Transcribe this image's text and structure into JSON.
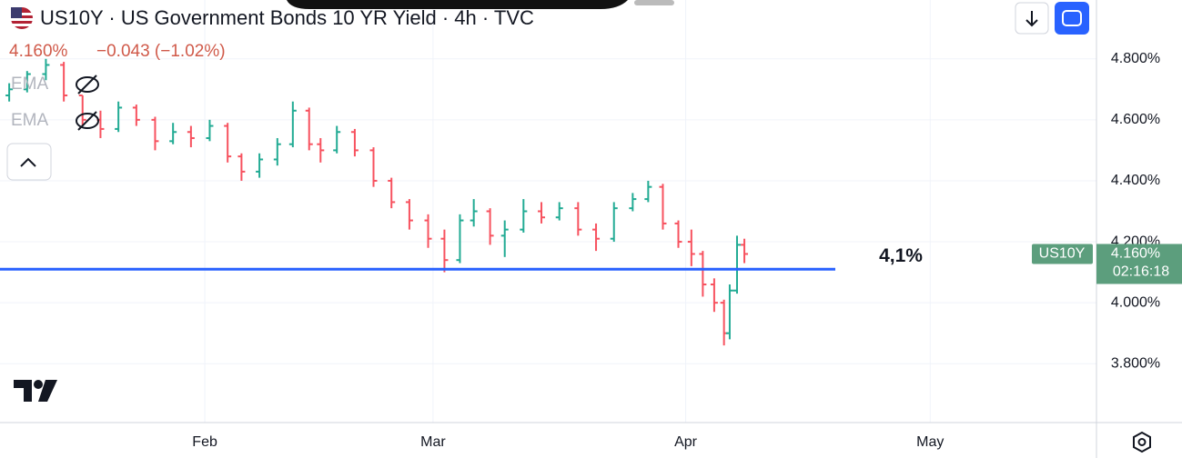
{
  "chart_data": {
    "type": "ohlc",
    "title": "US10Y · US Government Bonds 10 YR Yield · 4h · TVC",
    "price_label": "4.160%",
    "change_label": "−0.043 (−1.02%)",
    "indicators": [
      "EMA",
      "EMA"
    ],
    "symbol": "US10Y",
    "countdown": "02:16:18",
    "last_value": {
      "value": 4.16,
      "label": "4.160%"
    },
    "annotation": {
      "value": 4.11,
      "label": "4,1%",
      "color": "#2962ff"
    },
    "up_color": "#22ab94",
    "down_color": "#f7525f",
    "grid": true,
    "x": [
      8.0,
      10.2,
      12.5,
      14.7,
      17.0,
      19.2,
      21.4,
      23.6,
      25.9,
      28.1,
      30.3,
      32.6,
      34.8,
      36.5,
      38.7,
      40.9,
      42.8,
      44.8,
      46.2,
      48.2,
      50.4,
      52.7,
      54.9,
      57.1,
      59.4,
      61.4,
      63.3,
      65.0,
      67.0,
      68.8,
      71.1,
      73.3,
      75.5,
      77.8,
      80.0,
      82.2,
      84.5,
      86.4,
      88.2,
      90.1,
      91.7,
      93.1,
      94.5,
      95.7,
      96.4,
      97.3,
      98.2
    ],
    "open": [
      4.68,
      4.7,
      4.75,
      4.78,
      4.68,
      4.6,
      4.57,
      4.64,
      4.6,
      4.53,
      4.56,
      4.54,
      4.58,
      4.48,
      4.43,
      4.47,
      4.52,
      4.63,
      4.52,
      4.5,
      4.56,
      4.5,
      4.4,
      4.33,
      4.27,
      4.21,
      4.14,
      4.27,
      4.3,
      4.22,
      4.24,
      4.3,
      4.28,
      4.31,
      4.24,
      4.21,
      4.31,
      4.34,
      4.38,
      4.26,
      4.2,
      4.16,
      4.06,
      4.0,
      3.9,
      4.04,
      4.19
    ],
    "high": [
      4.72,
      4.76,
      4.8,
      4.79,
      4.68,
      4.63,
      4.66,
      4.65,
      4.61,
      4.59,
      4.58,
      4.6,
      4.59,
      4.49,
      4.49,
      4.54,
      4.66,
      4.64,
      4.54,
      4.58,
      4.57,
      4.51,
      4.41,
      4.34,
      4.29,
      4.24,
      4.29,
      4.34,
      4.31,
      4.27,
      4.34,
      4.33,
      4.33,
      4.33,
      4.26,
      4.33,
      4.36,
      4.4,
      4.39,
      4.27,
      4.24,
      4.17,
      4.08,
      4.01,
      4.06,
      4.22,
      4.21
    ],
    "low": [
      4.66,
      4.69,
      4.73,
      4.66,
      4.58,
      4.54,
      4.56,
      4.58,
      4.5,
      4.52,
      4.51,
      4.53,
      4.46,
      4.4,
      4.41,
      4.45,
      4.51,
      4.5,
      4.46,
      4.49,
      4.48,
      4.38,
      4.31,
      4.24,
      4.18,
      4.1,
      4.13,
      4.25,
      4.19,
      4.15,
      4.23,
      4.26,
      4.27,
      4.22,
      4.17,
      4.2,
      4.3,
      4.33,
      4.24,
      4.18,
      4.12,
      4.02,
      3.97,
      3.86,
      3.88,
      4.03,
      4.13
    ],
    "close": [
      4.7,
      4.75,
      4.78,
      4.68,
      4.6,
      4.57,
      4.64,
      4.6,
      4.53,
      4.56,
      4.54,
      4.58,
      4.48,
      4.43,
      4.47,
      4.52,
      4.63,
      4.52,
      4.5,
      4.56,
      4.5,
      4.4,
      4.33,
      4.27,
      4.21,
      4.14,
      4.27,
      4.3,
      4.22,
      4.24,
      4.3,
      4.28,
      4.31,
      4.24,
      4.21,
      4.31,
      4.34,
      4.38,
      4.26,
      4.2,
      4.16,
      4.06,
      4.0,
      3.9,
      4.04,
      4.19,
      4.16
    ],
    "xlim": [
      6.87,
      141.4
    ],
    "xticks": [
      {
        "value": 32,
        "label": "Feb"
      },
      {
        "value": 60,
        "label": "Mar"
      },
      {
        "value": 91,
        "label": "Apr"
      },
      {
        "value": 121,
        "label": "May"
      }
    ],
    "ylim": [
      3.607,
      4.993
    ],
    "yticks": [
      {
        "value": 3.8,
        "label": "3.800%"
      },
      {
        "value": 4.0,
        "label": "4.000%"
      },
      {
        "value": 4.2,
        "label": "4.200%"
      },
      {
        "value": 4.4,
        "label": "4.400%"
      },
      {
        "value": 4.6,
        "label": "4.600%"
      },
      {
        "value": 4.8,
        "label": "4.800%"
      }
    ]
  }
}
